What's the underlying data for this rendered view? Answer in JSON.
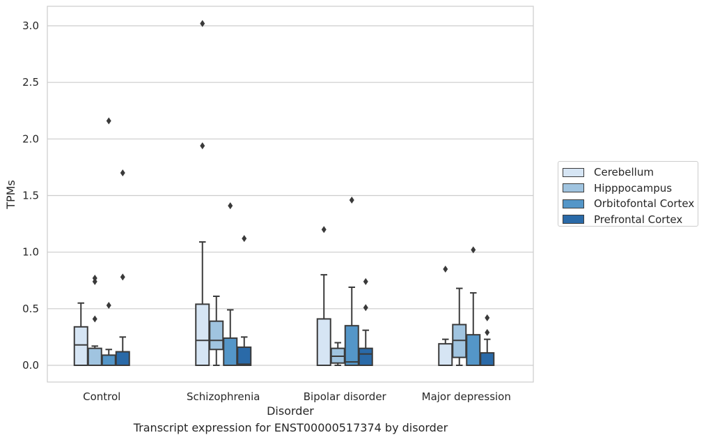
{
  "chart_data": {
    "type": "box",
    "caption": "Transcript expression for ENST00000517374 by disorder",
    "xlabel": "Disorder",
    "ylabel": "TPMs",
    "ylim": [
      -0.15,
      3.18
    ],
    "yticks": [
      "0.0",
      "0.5",
      "1.0",
      "1.5",
      "2.0",
      "2.5",
      "3.0"
    ],
    "grid": "horizontal",
    "legend_position": "right",
    "categories": [
      "Control",
      "Schizophrenia",
      "Bipolar disorder",
      "Major depression"
    ],
    "series": [
      {
        "name": "Cerebellum",
        "color": "#d6e5f4",
        "boxes": [
          {
            "whislo": 0.0,
            "q1": 0.0,
            "med": 0.18,
            "q3": 0.34,
            "whishi": 0.55,
            "fliers": []
          },
          {
            "whislo": 0.0,
            "q1": 0.0,
            "med": 0.22,
            "q3": 0.54,
            "whishi": 1.09,
            "fliers": [
              1.94,
              3.02
            ]
          },
          {
            "whislo": 0.0,
            "q1": 0.0,
            "med": 0.0,
            "q3": 0.41,
            "whishi": 0.8,
            "fliers": [
              1.2
            ]
          },
          {
            "whislo": 0.0,
            "q1": 0.0,
            "med": 0.0,
            "q3": 0.19,
            "whishi": 0.23,
            "fliers": [
              0.85
            ]
          }
        ]
      },
      {
        "name": "Hipppocampus",
        "color": "#a0c4e0",
        "boxes": [
          {
            "whislo": 0.0,
            "q1": 0.0,
            "med": 0.0,
            "q3": 0.15,
            "whishi": 0.17,
            "fliers": [
              0.41,
              0.74,
              0.77
            ]
          },
          {
            "whislo": 0.0,
            "q1": 0.14,
            "med": 0.22,
            "q3": 0.39,
            "whishi": 0.61,
            "fliers": []
          },
          {
            "whislo": 0.0,
            "q1": 0.02,
            "med": 0.08,
            "q3": 0.15,
            "whishi": 0.2,
            "fliers": []
          },
          {
            "whislo": 0.0,
            "q1": 0.07,
            "med": 0.22,
            "q3": 0.36,
            "whishi": 0.68,
            "fliers": []
          }
        ]
      },
      {
        "name": "Orbitofontal Cortex",
        "color": "#5496c8",
        "boxes": [
          {
            "whislo": 0.0,
            "q1": 0.0,
            "med": 0.0,
            "q3": 0.09,
            "whishi": 0.14,
            "fliers": [
              0.53,
              2.16
            ]
          },
          {
            "whislo": 0.0,
            "q1": 0.0,
            "med": 0.0,
            "q3": 0.24,
            "whishi": 0.49,
            "fliers": [
              1.41
            ]
          },
          {
            "whislo": 0.0,
            "q1": 0.0,
            "med": 0.03,
            "q3": 0.35,
            "whishi": 0.69,
            "fliers": [
              1.46
            ]
          },
          {
            "whislo": 0.0,
            "q1": 0.0,
            "med": 0.0,
            "q3": 0.27,
            "whishi": 0.64,
            "fliers": [
              1.02
            ]
          }
        ]
      },
      {
        "name": "Prefrontal Cortex",
        "color": "#2a6aa8",
        "boxes": [
          {
            "whislo": 0.0,
            "q1": 0.0,
            "med": 0.0,
            "q3": 0.12,
            "whishi": 0.25,
            "fliers": [
              0.78,
              1.7
            ]
          },
          {
            "whislo": 0.0,
            "q1": 0.0,
            "med": 0.01,
            "q3": 0.16,
            "whishi": 0.25,
            "fliers": [
              1.12
            ]
          },
          {
            "whislo": 0.0,
            "q1": 0.0,
            "med": 0.1,
            "q3": 0.15,
            "whishi": 0.31,
            "fliers": [
              0.51,
              0.74
            ]
          },
          {
            "whislo": 0.0,
            "q1": 0.0,
            "med": 0.0,
            "q3": 0.11,
            "whishi": 0.23,
            "fliers": [
              0.29,
              0.42
            ]
          }
        ]
      }
    ]
  }
}
